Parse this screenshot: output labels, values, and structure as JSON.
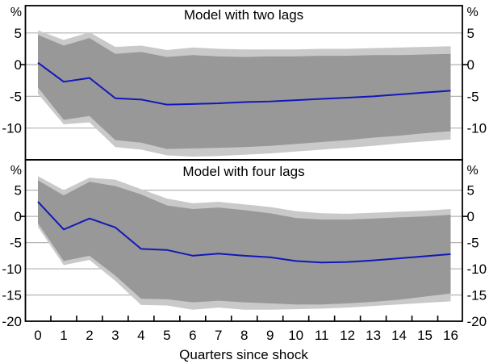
{
  "figure": {
    "x_axis_label": "Quarters since shock",
    "unit_label": "%"
  },
  "colors": {
    "background": "#ffffff",
    "outer_band": "#c9c9c9",
    "inner_band": "#989898",
    "line": "#1218b8",
    "gridline": "#b3b3b3",
    "axis": "#000000",
    "text": "#000000"
  },
  "x_axis": {
    "label": "Quarters since shock",
    "ticks": [
      0,
      1,
      2,
      3,
      4,
      5,
      6,
      7,
      8,
      9,
      10,
      11,
      12,
      13,
      14,
      15,
      16
    ]
  },
  "chart_data": [
    {
      "type": "line",
      "title": "Model with two lags",
      "ylabel": "%",
      "grid": true,
      "ylim": [
        -15,
        9.3
      ],
      "yticks": [
        5,
        0,
        -5,
        -10
      ],
      "x": [
        0,
        1,
        2,
        3,
        4,
        5,
        6,
        7,
        8,
        9,
        10,
        11,
        12,
        13,
        14,
        15,
        16
      ],
      "series": [
        {
          "name": "estimate",
          "values": [
            0.3,
            -2.7,
            -2.1,
            -5.3,
            -5.5,
            -6.3,
            -6.2,
            -6.1,
            -5.9,
            -5.8,
            -5.6,
            -5.4,
            -5.2,
            -5.0,
            -4.7,
            -4.4,
            -4.1
          ]
        },
        {
          "name": "inner_band_upper",
          "values": [
            4.7,
            3.0,
            4.2,
            1.7,
            2.0,
            1.2,
            1.5,
            1.3,
            1.2,
            1.3,
            1.3,
            1.4,
            1.4,
            1.5,
            1.5,
            1.6,
            1.7
          ]
        },
        {
          "name": "inner_band_lower",
          "values": [
            -3.6,
            -8.7,
            -8.1,
            -11.9,
            -12.3,
            -13.3,
            -13.2,
            -13.1,
            -13.0,
            -12.8,
            -12.5,
            -12.2,
            -11.9,
            -11.5,
            -11.2,
            -10.8,
            -10.5
          ]
        },
        {
          "name": "outer_band_upper",
          "values": [
            5.4,
            3.9,
            5.1,
            2.8,
            3.0,
            2.3,
            2.7,
            2.5,
            2.4,
            2.4,
            2.4,
            2.5,
            2.5,
            2.6,
            2.7,
            2.8,
            2.9
          ]
        },
        {
          "name": "outer_band_lower",
          "values": [
            -4.6,
            -9.4,
            -9.1,
            -13.0,
            -13.4,
            -14.3,
            -14.5,
            -14.4,
            -14.2,
            -14.0,
            -13.7,
            -13.4,
            -13.1,
            -12.8,
            -12.4,
            -12.1,
            -11.8
          ]
        }
      ]
    },
    {
      "type": "line",
      "title": "Model with four lags",
      "ylabel": "%",
      "grid": true,
      "ylim": [
        -20,
        10.8
      ],
      "yticks": [
        5,
        0,
        -5,
        -10,
        -15,
        -20
      ],
      "x": [
        0,
        1,
        2,
        3,
        4,
        5,
        6,
        7,
        8,
        9,
        10,
        11,
        12,
        13,
        14,
        15,
        16
      ],
      "series": [
        {
          "name": "estimate",
          "values": [
            2.8,
            -2.5,
            -0.4,
            -2.1,
            -6.2,
            -6.4,
            -7.5,
            -7.1,
            -7.5,
            -7.8,
            -8.5,
            -8.8,
            -8.7,
            -8.4,
            -8.0,
            -7.6,
            -7.2
          ]
        },
        {
          "name": "inner_band_upper",
          "values": [
            6.9,
            4.0,
            6.6,
            5.8,
            4.2,
            2.1,
            1.4,
            1.7,
            1.2,
            0.6,
            -0.3,
            -0.6,
            -0.6,
            -0.4,
            -0.2,
            0.0,
            0.3
          ]
        },
        {
          "name": "inner_band_lower",
          "values": [
            -1.3,
            -8.5,
            -7.5,
            -11.3,
            -15.7,
            -15.8,
            -16.4,
            -16.1,
            -16.4,
            -16.6,
            -16.8,
            -16.8,
            -16.6,
            -16.3,
            -15.9,
            -15.3,
            -14.7
          ]
        },
        {
          "name": "outer_band_upper",
          "values": [
            7.7,
            5.0,
            7.4,
            7.0,
            5.2,
            3.4,
            2.5,
            2.8,
            2.3,
            1.8,
            1.0,
            0.6,
            0.5,
            0.7,
            0.9,
            1.1,
            1.4
          ]
        },
        {
          "name": "outer_band_lower",
          "values": [
            -2.0,
            -9.3,
            -8.3,
            -12.3,
            -16.9,
            -17.0,
            -17.8,
            -17.4,
            -17.8,
            -17.8,
            -17.7,
            -17.6,
            -17.4,
            -17.1,
            -16.8,
            -16.5,
            -16.2
          ]
        }
      ]
    }
  ]
}
